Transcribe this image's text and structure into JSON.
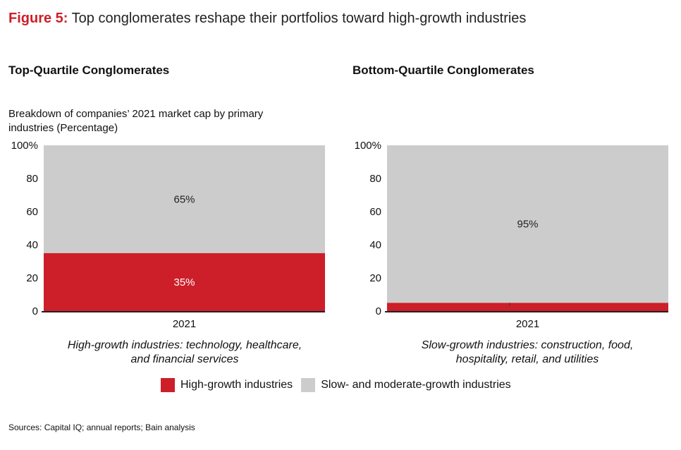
{
  "figure": {
    "number": "Figure 5:",
    "title": " Top conglomerates reshape their portfolios toward high-growth industries"
  },
  "panels": {
    "left_title": "Top-Quartile Conglomerates",
    "right_title": "Bottom-Quartile Conglomerates",
    "subtitle_line1": "Breakdown of companies’ 2021 market cap by primary",
    "subtitle_line2": "industries (Percentage)",
    "left_caption_line1": "High-growth industries: technology, healthcare,",
    "left_caption_line2": "and financial services",
    "right_caption_line1": "Slow-growth industries: construction, food,",
    "right_caption_line2": "hospitality, retail, and utilities"
  },
  "legend": {
    "high": "High-growth industries",
    "slow": "Slow- and moderate-growth industries"
  },
  "source": "Sources: Capital IQ; annual reports; Bain analysis",
  "colors": {
    "high": "#cc1f2a",
    "slow": "#cccccc"
  },
  "chart_data": [
    {
      "type": "bar",
      "stacked": true,
      "title": "Top-Quartile Conglomerates",
      "categories": [
        "2021"
      ],
      "series": [
        {
          "name": "High-growth industries",
          "values": [
            35
          ],
          "label": "35%"
        },
        {
          "name": "Slow- and moderate-growth industries",
          "values": [
            65
          ],
          "label": "65%"
        }
      ],
      "yticks": [
        "0",
        "20",
        "40",
        "60",
        "80",
        "100%"
      ],
      "ylim": [
        0,
        100
      ]
    },
    {
      "type": "bar",
      "stacked": true,
      "title": "Bottom-Quartile Conglomerates",
      "categories": [
        "2021"
      ],
      "series": [
        {
          "name": "High-growth industries",
          "values": [
            5
          ],
          "label": "5%"
        },
        {
          "name": "Slow- and moderate-growth industries",
          "values": [
            95
          ],
          "label": "95%"
        }
      ],
      "yticks": [
        "0",
        "20",
        "40",
        "60",
        "80",
        "100%"
      ],
      "ylim": [
        0,
        100
      ]
    }
  ]
}
